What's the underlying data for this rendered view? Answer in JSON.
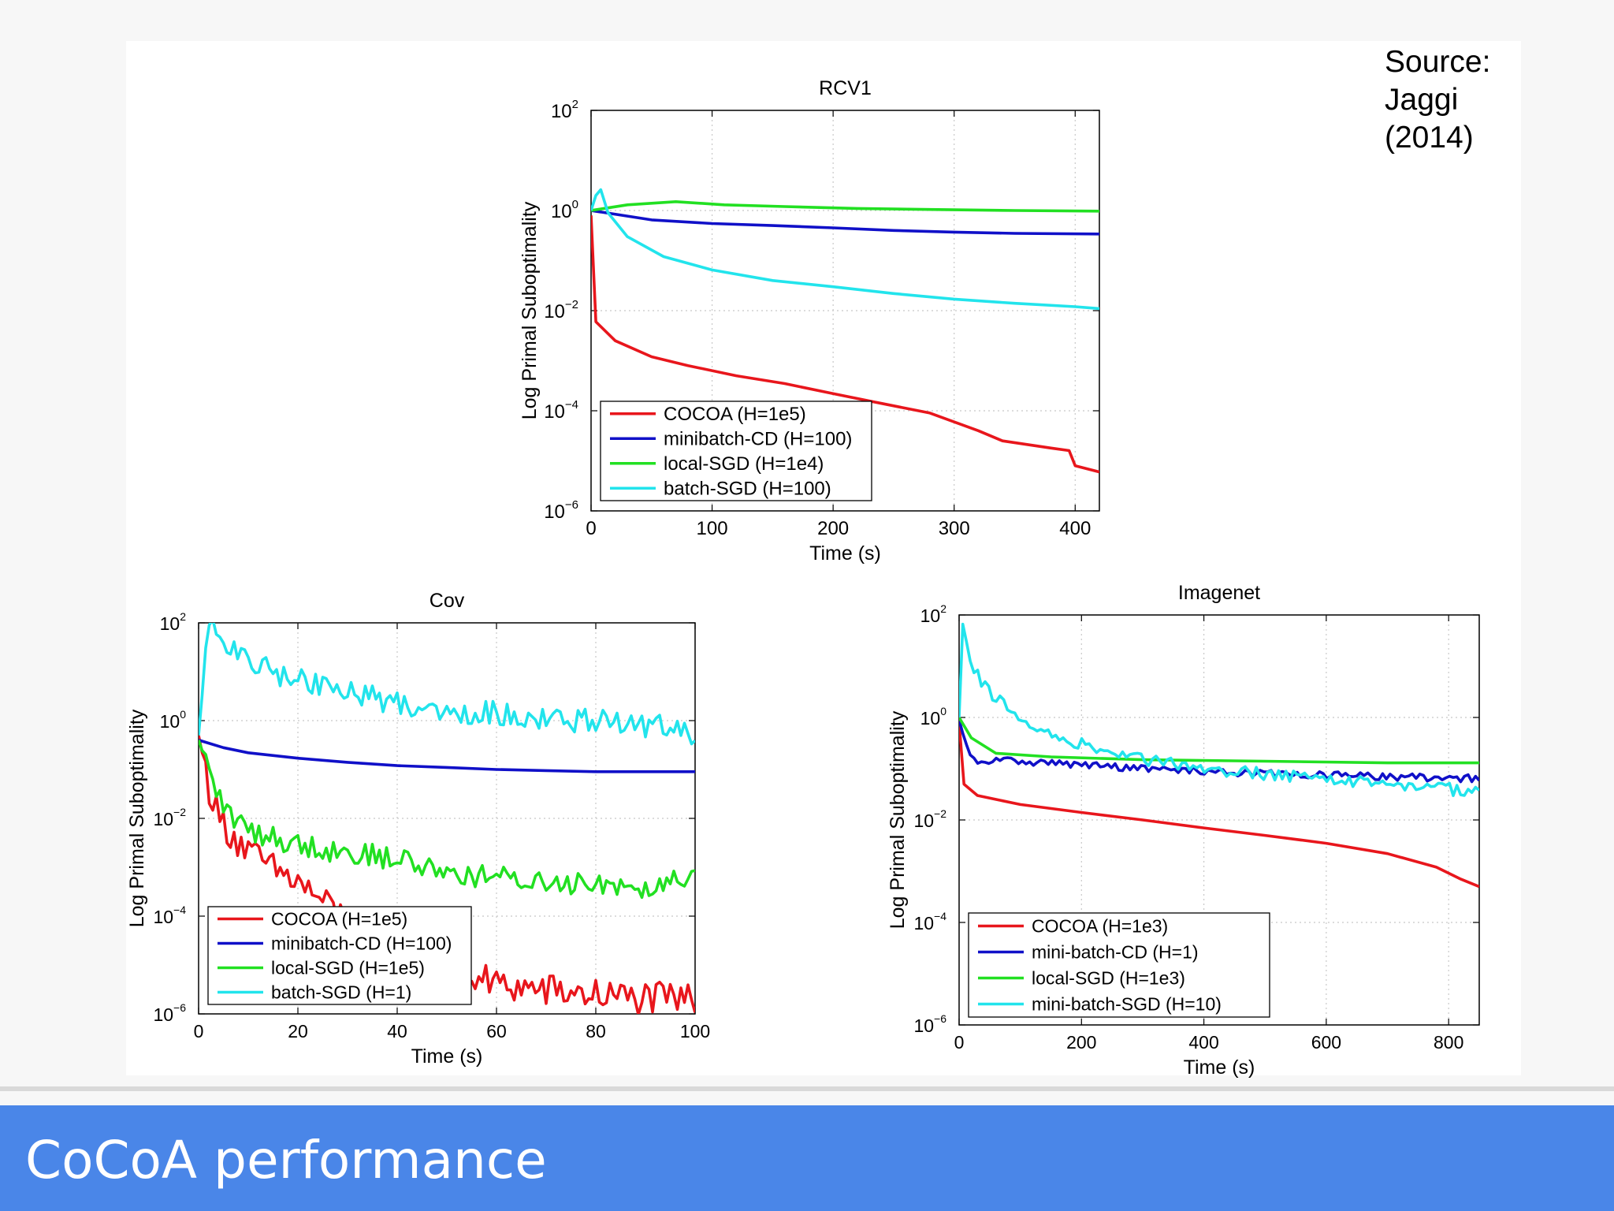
{
  "source": {
    "line1": "Source:",
    "line2": "Jaggi",
    "line3": "(2014)"
  },
  "footer": {
    "title": "CoCoA performance",
    "color": "#4a86e8",
    "text_color": "#ffffff"
  },
  "chart_data": [
    {
      "type": "line",
      "title": "RCV1",
      "xlabel": "Time (s)",
      "ylabel": "Log Primal Suboptimality",
      "yscale": "log",
      "xlim": [
        0,
        420
      ],
      "ylim": [
        1e-06,
        100
      ],
      "xticks": [
        0,
        100,
        200,
        300,
        400
      ],
      "yticks": [
        2,
        0,
        -2,
        -4,
        -6
      ],
      "grid": true,
      "legend_position": "bottom-left",
      "series": [
        {
          "name": "COCOA (H=1e5)",
          "color": "#e8161c",
          "noise": 0,
          "points": [
            [
              0,
              0.8
            ],
            [
              4,
              0.006
            ],
            [
              20,
              0.0025
            ],
            [
              50,
              0.0012
            ],
            [
              80,
              0.0008
            ],
            [
              120,
              0.0005
            ],
            [
              160,
              0.00035
            ],
            [
              200,
              0.00022
            ],
            [
              240,
              0.00014
            ],
            [
              280,
              9e-05
            ],
            [
              320,
              4e-05
            ],
            [
              340,
              2.5e-05
            ],
            [
              380,
              1.8e-05
            ],
            [
              395,
              1.6e-05
            ],
            [
              400,
              8e-06
            ],
            [
              420,
              6e-06
            ]
          ]
        },
        {
          "name": "minibatch-CD (H=100)",
          "color": "#1010c8",
          "noise": 0,
          "points": [
            [
              0,
              1
            ],
            [
              50,
              0.65
            ],
            [
              100,
              0.55
            ],
            [
              150,
              0.5
            ],
            [
              200,
              0.45
            ],
            [
              250,
              0.4
            ],
            [
              300,
              0.37
            ],
            [
              350,
              0.35
            ],
            [
              420,
              0.34
            ]
          ]
        },
        {
          "name": "local-SGD (H=1e4)",
          "color": "#22e022",
          "noise": 0,
          "points": [
            [
              0,
              1
            ],
            [
              30,
              1.3
            ],
            [
              70,
              1.5
            ],
            [
              110,
              1.3
            ],
            [
              160,
              1.2
            ],
            [
              220,
              1.1
            ],
            [
              280,
              1.05
            ],
            [
              350,
              1.0
            ],
            [
              420,
              0.97
            ]
          ]
        },
        {
          "name": "batch-SGD (H=100)",
          "color": "#22e4ec",
          "noise": 0,
          "points": [
            [
              0,
              1
            ],
            [
              4,
              2
            ],
            [
              8,
              2.6
            ],
            [
              14,
              0.9
            ],
            [
              30,
              0.3
            ],
            [
              60,
              0.12
            ],
            [
              100,
              0.065
            ],
            [
              150,
              0.04
            ],
            [
              200,
              0.03
            ],
            [
              250,
              0.022
            ],
            [
              300,
              0.017
            ],
            [
              350,
              0.014
            ],
            [
              400,
              0.012
            ],
            [
              420,
              0.011
            ]
          ]
        }
      ]
    },
    {
      "type": "line",
      "title": "Cov",
      "xlabel": "Time (s)",
      "ylabel": "Log Primal Suboptimality",
      "yscale": "log",
      "xlim": [
        0,
        100
      ],
      "ylim": [
        1e-06,
        100
      ],
      "xticks": [
        0,
        20,
        40,
        60,
        80,
        100
      ],
      "yticks": [
        2,
        0,
        -2,
        -4,
        -6
      ],
      "grid": true,
      "legend_position": "bottom-left",
      "series": [
        {
          "name": "COCOA (H=1e5)",
          "color": "#e8161c",
          "noise": 0.35,
          "points": [
            [
              0,
              0.5
            ],
            [
              2,
              0.05
            ],
            [
              4,
              0.01
            ],
            [
              6,
              0.006
            ],
            [
              10,
              0.002
            ],
            [
              15,
              0.0009
            ],
            [
              20,
              0.0005
            ],
            [
              25,
              0.0002
            ],
            [
              30,
              8e-05
            ],
            [
              40,
              2e-05
            ],
            [
              50,
              8e-06
            ],
            [
              60,
              4e-06
            ],
            [
              70,
              3e-06
            ],
            [
              80,
              2.5e-06
            ],
            [
              90,
              2e-06
            ],
            [
              100,
              2e-06
            ]
          ]
        },
        {
          "name": "minibatch-CD (H=100)",
          "color": "#1010c8",
          "noise": 0,
          "points": [
            [
              0,
              0.4
            ],
            [
              5,
              0.28
            ],
            [
              10,
              0.22
            ],
            [
              20,
              0.17
            ],
            [
              30,
              0.14
            ],
            [
              40,
              0.12
            ],
            [
              50,
              0.11
            ],
            [
              60,
              0.1
            ],
            [
              70,
              0.095
            ],
            [
              80,
              0.09
            ],
            [
              100,
              0.09
            ]
          ]
        },
        {
          "name": "local-SGD (H=1e5)",
          "color": "#22e022",
          "noise": 0.25,
          "points": [
            [
              0,
              0.4
            ],
            [
              3,
              0.05
            ],
            [
              6,
              0.012
            ],
            [
              10,
              0.006
            ],
            [
              15,
              0.004
            ],
            [
              20,
              0.003
            ],
            [
              30,
              0.002
            ],
            [
              40,
              0.0015
            ],
            [
              50,
              0.0008
            ],
            [
              60,
              0.0006
            ],
            [
              70,
              0.0005
            ],
            [
              80,
              0.0005
            ],
            [
              90,
              0.0004
            ],
            [
              100,
              0.0008
            ]
          ]
        },
        {
          "name": "batch-SGD (H=1)",
          "color": "#22e4ec",
          "noise": 0.25,
          "points": [
            [
              0,
              0.5
            ],
            [
              2,
              100
            ],
            [
              4,
              60
            ],
            [
              8,
              20
            ],
            [
              15,
              10
            ],
            [
              25,
              5
            ],
            [
              35,
              3
            ],
            [
              45,
              1.8
            ],
            [
              55,
              1.5
            ],
            [
              65,
              1.3
            ],
            [
              75,
              1
            ],
            [
              85,
              0.9
            ],
            [
              95,
              0.7
            ],
            [
              100,
              0.5
            ]
          ]
        }
      ]
    },
    {
      "type": "line",
      "title": "Imagenet",
      "xlabel": "Time (s)",
      "ylabel": "Log Primal Suboptimality",
      "yscale": "log",
      "xlim": [
        0,
        850
      ],
      "ylim": [
        1e-06,
        100
      ],
      "xticks": [
        0,
        200,
        400,
        600,
        800
      ],
      "yticks": [
        2,
        0,
        -2,
        -4,
        -6
      ],
      "grid": true,
      "legend_position": "bottom-left",
      "series": [
        {
          "name": "COCOA (H=1e3)",
          "color": "#e8161c",
          "noise": 0,
          "points": [
            [
              0,
              0.8
            ],
            [
              8,
              0.05
            ],
            [
              30,
              0.03
            ],
            [
              100,
              0.02
            ],
            [
              200,
              0.014
            ],
            [
              300,
              0.01
            ],
            [
              400,
              0.007
            ],
            [
              500,
              0.005
            ],
            [
              600,
              0.0035
            ],
            [
              700,
              0.0022
            ],
            [
              780,
              0.0012
            ],
            [
              820,
              0.0007
            ],
            [
              850,
              0.0005
            ]
          ]
        },
        {
          "name": "mini-batch-CD (H=1)",
          "color": "#1010c8",
          "noise": 0.07,
          "points": [
            [
              0,
              0.9
            ],
            [
              15,
              0.2
            ],
            [
              30,
              0.12
            ],
            [
              60,
              0.15
            ],
            [
              100,
              0.14
            ],
            [
              200,
              0.12
            ],
            [
              300,
              0.1
            ],
            [
              400,
              0.09
            ],
            [
              500,
              0.08
            ],
            [
              600,
              0.075
            ],
            [
              700,
              0.07
            ],
            [
              800,
              0.065
            ],
            [
              850,
              0.065
            ]
          ]
        },
        {
          "name": "local-SGD (H=1e3)",
          "color": "#22e022",
          "noise": 0,
          "points": [
            [
              0,
              1
            ],
            [
              20,
              0.4
            ],
            [
              60,
              0.2
            ],
            [
              150,
              0.17
            ],
            [
              300,
              0.15
            ],
            [
              500,
              0.14
            ],
            [
              700,
              0.13
            ],
            [
              850,
              0.13
            ]
          ]
        },
        {
          "name": "mini-batch-SGD (H=10)",
          "color": "#22e4ec",
          "noise": 0.12,
          "points": [
            [
              0,
              1
            ],
            [
              4,
              100
            ],
            [
              10,
              30
            ],
            [
              25,
              8
            ],
            [
              50,
              3
            ],
            [
              80,
              1.5
            ],
            [
              120,
              0.6
            ],
            [
              200,
              0.3
            ],
            [
              300,
              0.15
            ],
            [
              400,
              0.1
            ],
            [
              500,
              0.08
            ],
            [
              600,
              0.06
            ],
            [
              700,
              0.05
            ],
            [
              800,
              0.04
            ],
            [
              850,
              0.035
            ]
          ]
        }
      ]
    }
  ]
}
